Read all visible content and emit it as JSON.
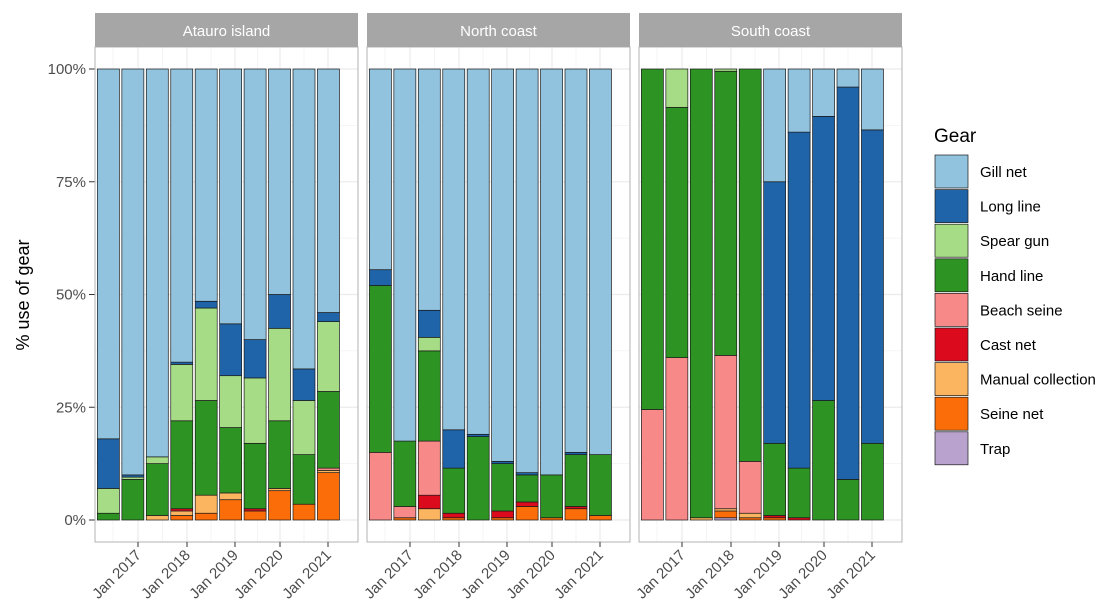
{
  "chart_data": {
    "type": "bar",
    "stacked": true,
    "ylabel": "% use of gear",
    "y_ticks": [
      "0%",
      "25%",
      "50%",
      "75%",
      "100%"
    ],
    "ylim": [
      0,
      100
    ],
    "x_tick_labels": [
      "Jan 2017",
      "Jan 2018",
      "Jan 2019",
      "Jan 2020",
      "Jan 2021"
    ],
    "legend": {
      "title": "Gear",
      "position": "right",
      "entries": [
        {
          "name": "Gill net",
          "color": "#92c3de"
        },
        {
          "name": "Long line",
          "color": "#1f63a8"
        },
        {
          "name": "Spear gun",
          "color": "#a6dc85"
        },
        {
          "name": "Hand line",
          "color": "#2d9322"
        },
        {
          "name": "Beach seine",
          "color": "#f78989"
        },
        {
          "name": "Cast net",
          "color": "#dc0a1d"
        },
        {
          "name": "Manual collection",
          "color": "#fbb561"
        },
        {
          "name": "Seine net",
          "color": "#fb6d09"
        },
        {
          "name": "Trap",
          "color": "#b9a3ce"
        }
      ]
    },
    "stack_order_bottom_to_top": [
      "Trap",
      "Seine net",
      "Manual collection",
      "Cast net",
      "Beach seine",
      "Hand line",
      "Spear gun",
      "Long line",
      "Gill net"
    ],
    "periods": [
      "2016-H2",
      "2017-H1",
      "2017-H2",
      "2018-H1",
      "2018-H2",
      "2019-H1",
      "2019-H2",
      "2020-H1",
      "2020-H2",
      "2021-H1"
    ],
    "panels": [
      {
        "title": "Atauro island",
        "bars": [
          {
            "Trap": 0,
            "Seine net": 0,
            "Manual collection": 0,
            "Cast net": 0,
            "Beach seine": 0,
            "Hand line": 1.5,
            "Spear gun": 5.5,
            "Long line": 11,
            "Gill net": 82
          },
          {
            "Trap": 0,
            "Seine net": 0,
            "Manual collection": 0,
            "Cast net": 0,
            "Beach seine": 0,
            "Hand line": 9,
            "Spear gun": 0.5,
            "Long line": 0.5,
            "Gill net": 90
          },
          {
            "Trap": 0,
            "Seine net": 0,
            "Manual collection": 1,
            "Cast net": 0,
            "Beach seine": 0,
            "Hand line": 11.5,
            "Spear gun": 1.5,
            "Long line": 0,
            "Gill net": 86
          },
          {
            "Trap": 0,
            "Seine net": 1,
            "Manual collection": 1,
            "Cast net": 0.5,
            "Beach seine": 0,
            "Hand line": 19.5,
            "Spear gun": 12.5,
            "Long line": 0.5,
            "Gill net": 65
          },
          {
            "Trap": 0,
            "Seine net": 1.5,
            "Manual collection": 4,
            "Cast net": 0,
            "Beach seine": 0,
            "Hand line": 21,
            "Spear gun": 20.5,
            "Long line": 1.5,
            "Gill net": 51.5
          },
          {
            "Trap": 0,
            "Seine net": 4.5,
            "Manual collection": 1.5,
            "Cast net": 0,
            "Beach seine": 0,
            "Hand line": 14.5,
            "Spear gun": 11.5,
            "Long line": 11.5,
            "Gill net": 56.5
          },
          {
            "Trap": 0,
            "Seine net": 2,
            "Manual collection": 0,
            "Cast net": 0.5,
            "Beach seine": 0,
            "Hand line": 14.5,
            "Spear gun": 14.5,
            "Long line": 8.5,
            "Gill net": 60
          },
          {
            "Trap": 0,
            "Seine net": 6.5,
            "Manual collection": 0.5,
            "Cast net": 0,
            "Beach seine": 0,
            "Hand line": 15,
            "Spear gun": 20.5,
            "Long line": 7.5,
            "Gill net": 50
          },
          {
            "Trap": 0,
            "Seine net": 3.5,
            "Manual collection": 0,
            "Cast net": 0,
            "Beach seine": 0,
            "Hand line": 11,
            "Spear gun": 12,
            "Long line": 7,
            "Gill net": 66.5
          },
          {
            "Trap": 0,
            "Seine net": 10.5,
            "Manual collection": 0.5,
            "Cast net": 0,
            "Beach seine": 0.5,
            "Hand line": 17,
            "Spear gun": 15.5,
            "Long line": 2,
            "Gill net": 54
          }
        ]
      },
      {
        "title": "North coast",
        "bars": [
          {
            "Trap": 0,
            "Seine net": 0,
            "Manual collection": 0,
            "Cast net": 0,
            "Beach seine": 15,
            "Hand line": 37,
            "Spear gun": 0,
            "Long line": 3.5,
            "Gill net": 44.5
          },
          {
            "Trap": 0,
            "Seine net": 0.5,
            "Manual collection": 0,
            "Cast net": 0,
            "Beach seine": 2.5,
            "Hand line": 14.5,
            "Spear gun": 0,
            "Long line": 0,
            "Gill net": 82.5
          },
          {
            "Trap": 0,
            "Seine net": 0,
            "Manual collection": 2.5,
            "Cast net": 3,
            "Beach seine": 12,
            "Hand line": 20,
            "Spear gun": 3,
            "Long line": 6,
            "Gill net": 53.5
          },
          {
            "Trap": 0,
            "Seine net": 0.5,
            "Manual collection": 0,
            "Cast net": 1,
            "Beach seine": 0,
            "Hand line": 10,
            "Spear gun": 0,
            "Long line": 8.5,
            "Gill net": 80
          },
          {
            "Trap": 0,
            "Seine net": 0,
            "Manual collection": 0,
            "Cast net": 0,
            "Beach seine": 0,
            "Hand line": 18.5,
            "Spear gun": 0,
            "Long line": 0.5,
            "Gill net": 81
          },
          {
            "Trap": 0,
            "Seine net": 0.5,
            "Manual collection": 0,
            "Cast net": 1.5,
            "Beach seine": 0,
            "Hand line": 10.5,
            "Spear gun": 0,
            "Long line": 0.5,
            "Gill net": 87
          },
          {
            "Trap": 0,
            "Seine net": 3,
            "Manual collection": 0,
            "Cast net": 1,
            "Beach seine": 0,
            "Hand line": 6,
            "Spear gun": 0,
            "Long line": 0.5,
            "Gill net": 89.5
          },
          {
            "Trap": 0,
            "Seine net": 0.5,
            "Manual collection": 0,
            "Cast net": 0,
            "Beach seine": 0,
            "Hand line": 9.5,
            "Spear gun": 0,
            "Long line": 0,
            "Gill net": 90
          },
          {
            "Trap": 0,
            "Seine net": 2.5,
            "Manual collection": 0,
            "Cast net": 0.5,
            "Beach seine": 0,
            "Hand line": 11.5,
            "Spear gun": 0,
            "Long line": 0.5,
            "Gill net": 85
          },
          {
            "Trap": 0,
            "Seine net": 1,
            "Manual collection": 0,
            "Cast net": 0,
            "Beach seine": 0,
            "Hand line": 13.5,
            "Spear gun": 0,
            "Long line": 0,
            "Gill net": 85.5
          }
        ]
      },
      {
        "title": "South coast",
        "bars": [
          {
            "Trap": 0,
            "Seine net": 0,
            "Manual collection": 0,
            "Cast net": 0,
            "Beach seine": 24.5,
            "Hand line": 75.5,
            "Spear gun": 0,
            "Long line": 0,
            "Gill net": 0
          },
          {
            "Trap": 0,
            "Seine net": 0,
            "Manual collection": 0,
            "Cast net": 0,
            "Beach seine": 36,
            "Hand line": 55.5,
            "Spear gun": 8.5,
            "Long line": 0,
            "Gill net": 0
          },
          {
            "Trap": 0,
            "Seine net": 0,
            "Manual collection": 0.5,
            "Cast net": 0,
            "Beach seine": 0,
            "Hand line": 99.5,
            "Spear gun": 0,
            "Long line": 0,
            "Gill net": 0
          },
          {
            "Trap": 0.5,
            "Seine net": 1.5,
            "Manual collection": 0.5,
            "Cast net": 0,
            "Beach seine": 34,
            "Hand line": 63,
            "Spear gun": 0.5,
            "Long line": 0,
            "Gill net": 0
          },
          {
            "Trap": 0,
            "Seine net": 0.5,
            "Manual collection": 1,
            "Cast net": 0,
            "Beach seine": 11.5,
            "Hand line": 87,
            "Spear gun": 0,
            "Long line": 0,
            "Gill net": 0
          },
          {
            "Trap": 0,
            "Seine net": 0.5,
            "Manual collection": 0,
            "Cast net": 0.5,
            "Beach seine": 0,
            "Hand line": 16,
            "Spear gun": 0,
            "Long line": 58,
            "Gill net": 25
          },
          {
            "Trap": 0,
            "Seine net": 0,
            "Manual collection": 0,
            "Cast net": 0.5,
            "Beach seine": 0,
            "Hand line": 11,
            "Spear gun": 0,
            "Long line": 74.5,
            "Gill net": 14
          },
          {
            "Trap": 0,
            "Seine net": 0,
            "Manual collection": 0,
            "Cast net": 0,
            "Beach seine": 0,
            "Hand line": 26.5,
            "Spear gun": 0,
            "Long line": 63,
            "Gill net": 10.5
          },
          {
            "Trap": 0,
            "Seine net": 0,
            "Manual collection": 0,
            "Cast net": 0,
            "Beach seine": 0,
            "Hand line": 9,
            "Spear gun": 0,
            "Long line": 87,
            "Gill net": 4
          },
          {
            "Trap": 0,
            "Seine net": 0,
            "Manual collection": 0,
            "Cast net": 0,
            "Beach seine": 0,
            "Hand line": 17,
            "Spear gun": 0,
            "Long line": 69.5,
            "Gill net": 13.5
          }
        ]
      }
    ]
  }
}
